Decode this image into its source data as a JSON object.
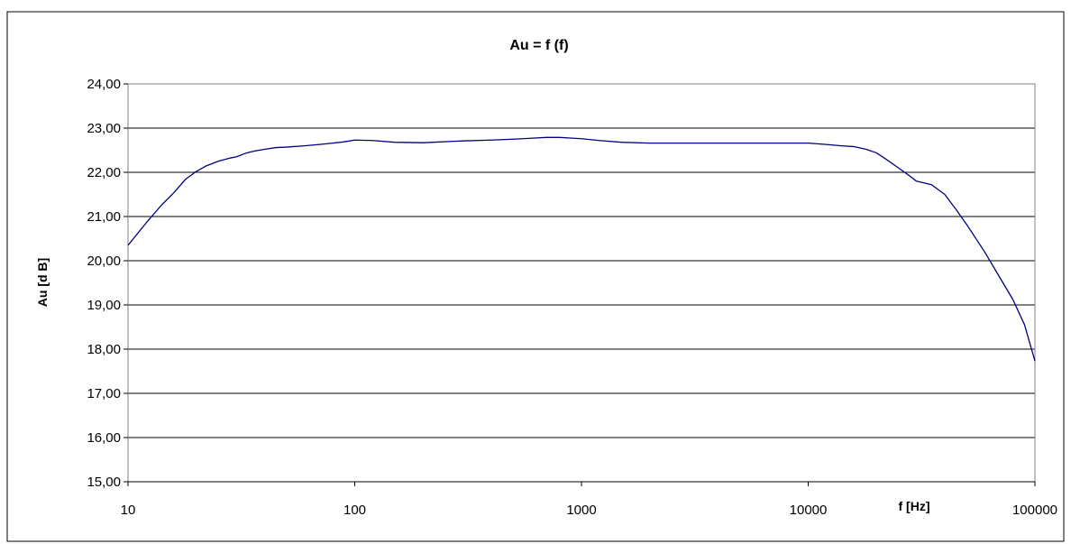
{
  "chart_data": {
    "type": "line",
    "title": "Au = f (f)",
    "xlabel": "f [Hz]",
    "ylabel": "Au [d B]",
    "x_scale": "log",
    "xlim": [
      10,
      100000
    ],
    "ylim": [
      15,
      24
    ],
    "x_ticks": [
      10,
      100,
      1000,
      10000,
      100000
    ],
    "x_tick_labels": [
      "10",
      "100",
      "1000",
      "10000",
      "100000"
    ],
    "y_ticks": [
      15,
      16,
      17,
      18,
      19,
      20,
      21,
      22,
      23,
      24
    ],
    "y_tick_labels": [
      "15,00",
      "16,00",
      "17,00",
      "18,00",
      "19,00",
      "20,00",
      "21,00",
      "22,00",
      "23,00",
      "24,00"
    ],
    "grid": "horizontal",
    "legend": "none",
    "colors": {
      "line": "#000080",
      "grid": "#000000",
      "border": "#000000"
    },
    "series": [
      {
        "x": [
          10,
          12,
          14,
          16,
          18,
          20,
          22,
          25,
          28,
          30,
          33,
          36,
          40,
          45,
          50,
          60,
          70,
          80,
          90,
          100,
          120,
          150,
          200,
          300,
          400,
          500,
          600,
          700,
          800,
          1000,
          1200,
          1500,
          2000,
          3000,
          5000,
          7000,
          10000,
          12000,
          14000,
          16000,
          18000,
          20000,
          22000,
          25000,
          28000,
          30000,
          35000,
          40000,
          45000,
          50000,
          60000,
          70000,
          80000,
          90000,
          100000
        ],
        "values": [
          20.35,
          20.85,
          21.25,
          21.55,
          21.85,
          22.02,
          22.14,
          22.25,
          22.32,
          22.35,
          22.43,
          22.48,
          22.52,
          22.56,
          22.57,
          22.6,
          22.63,
          22.66,
          22.69,
          22.73,
          22.72,
          22.68,
          22.67,
          22.71,
          22.73,
          22.75,
          22.77,
          22.79,
          22.79,
          22.76,
          22.72,
          22.68,
          22.66,
          22.66,
          22.66,
          22.66,
          22.66,
          22.63,
          22.6,
          22.58,
          22.52,
          22.44,
          22.3,
          22.1,
          21.92,
          21.8,
          21.72,
          21.5,
          21.15,
          20.82,
          20.2,
          19.62,
          19.12,
          18.55,
          17.73
        ]
      }
    ]
  }
}
